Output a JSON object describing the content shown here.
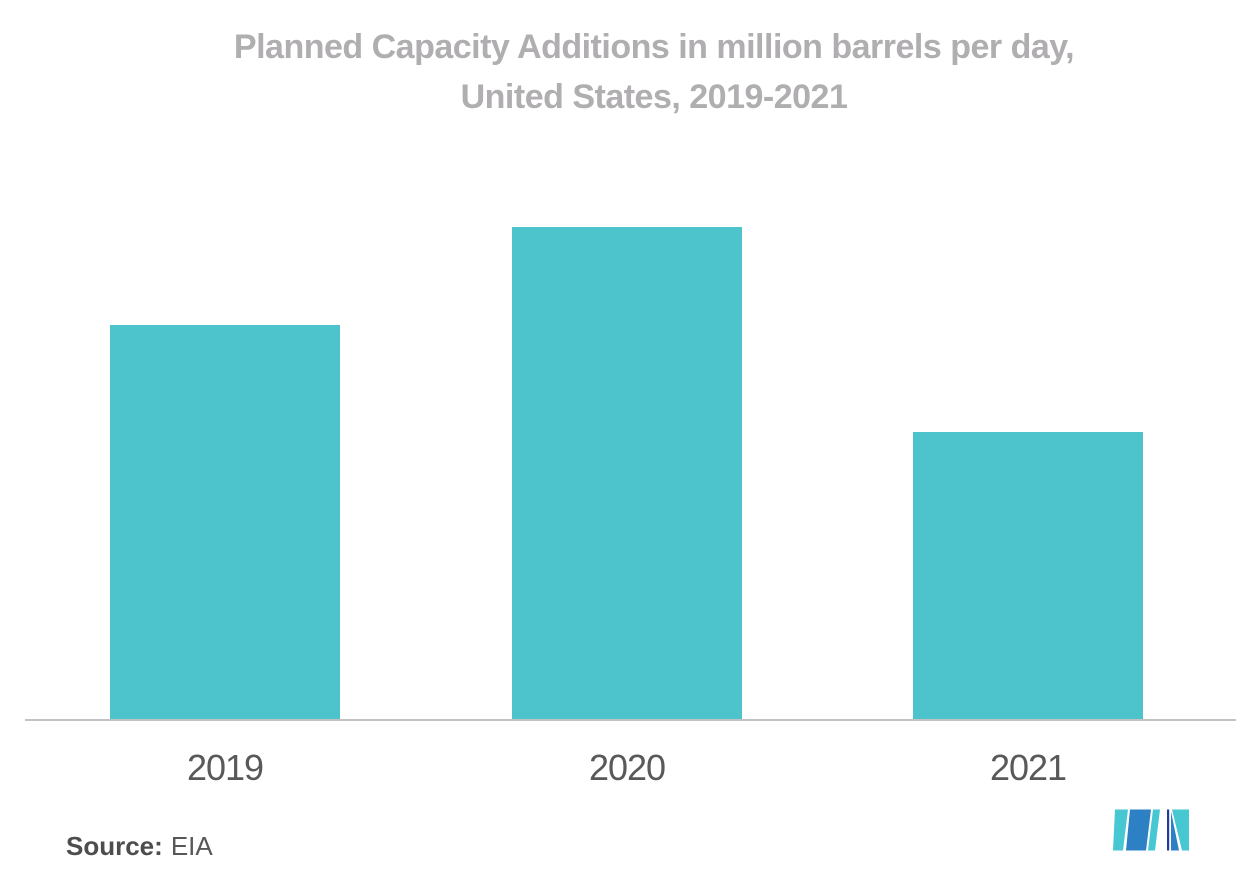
{
  "title": {
    "line1": "Planned Capacity Additions in million barrels per day,",
    "line2": "United States, 2019-2021"
  },
  "source": {
    "label": "Source:",
    "value": "EIA"
  },
  "logo": {
    "name": "Mordor Intelligence logo mark"
  },
  "colors": {
    "bar_fill": "#4dc3cb",
    "title_text": "#b0aeb0",
    "axis_label_text": "#59595b",
    "source_text": "#58585a",
    "source_label_text": "#4d4d4f",
    "axis_line": "#c2c2c4",
    "logo_blue": "#2e80c4",
    "logo_teal": "#47c7d2",
    "logo_navy": "#2438a0"
  },
  "chart_data": {
    "type": "bar",
    "categories": [
      "2019",
      "2020",
      "2021"
    ],
    "values": [
      0.8,
      1.0,
      0.583
    ],
    "title": "Planned Capacity Additions in million barrels per day, United States, 2019-2021",
    "xlabel": "",
    "ylabel": "",
    "ylim": [
      0,
      1.14
    ],
    "grid": false,
    "value_axis_visible": false,
    "legend": "none",
    "note": "No numeric axis shown in figure; values are relative bar heights normalized to the 2020 bar (tallest)."
  }
}
